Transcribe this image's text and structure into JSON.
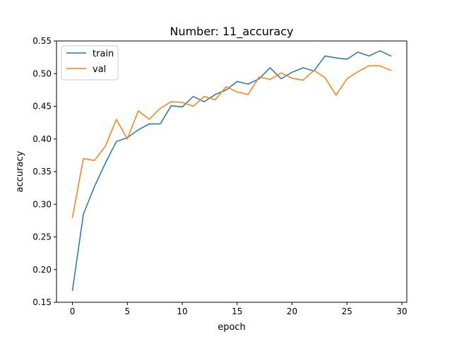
{
  "chart_data": {
    "type": "line",
    "title": "Number: 11_accuracy",
    "xlabel": "epoch",
    "ylabel": "accuracy",
    "xlim": [
      -1.45,
      30.45
    ],
    "ylim": [
      0.15,
      0.55
    ],
    "xticks": [
      0,
      5,
      10,
      15,
      20,
      25,
      30
    ],
    "xtick_labels": [
      "0",
      "5",
      "10",
      "15",
      "20",
      "25",
      "30"
    ],
    "yticks": [
      0.15,
      0.2,
      0.25,
      0.3,
      0.35,
      0.4,
      0.45,
      0.5,
      0.55
    ],
    "ytick_labels": [
      "0.15",
      "0.20",
      "0.25",
      "0.30",
      "0.35",
      "0.40",
      "0.45",
      "0.50",
      "0.55"
    ],
    "grid": false,
    "legend_position": "top-left",
    "x": [
      0,
      1,
      2,
      3,
      4,
      5,
      6,
      7,
      8,
      9,
      10,
      11,
      12,
      13,
      14,
      15,
      16,
      17,
      18,
      19,
      20,
      21,
      22,
      23,
      24,
      25,
      26,
      27,
      28,
      29
    ],
    "series": [
      {
        "name": "train",
        "color": "#1f77b4",
        "values": [
          0.168,
          0.285,
          0.327,
          0.363,
          0.396,
          0.402,
          0.414,
          0.423,
          0.423,
          0.451,
          0.449,
          0.465,
          0.457,
          0.468,
          0.475,
          0.488,
          0.484,
          0.492,
          0.509,
          0.492,
          0.502,
          0.509,
          0.504,
          0.527,
          0.524,
          0.522,
          0.533,
          0.527,
          0.535,
          0.527
        ]
      },
      {
        "name": "val",
        "color": "#ff7f0e",
        "values": [
          0.28,
          0.37,
          0.367,
          0.389,
          0.43,
          0.4,
          0.443,
          0.43,
          0.447,
          0.457,
          0.456,
          0.45,
          0.465,
          0.46,
          0.48,
          0.472,
          0.468,
          0.495,
          0.491,
          0.501,
          0.493,
          0.49,
          0.505,
          0.494,
          0.467,
          0.492,
          0.503,
          0.512,
          0.512,
          0.505
        ]
      }
    ]
  }
}
